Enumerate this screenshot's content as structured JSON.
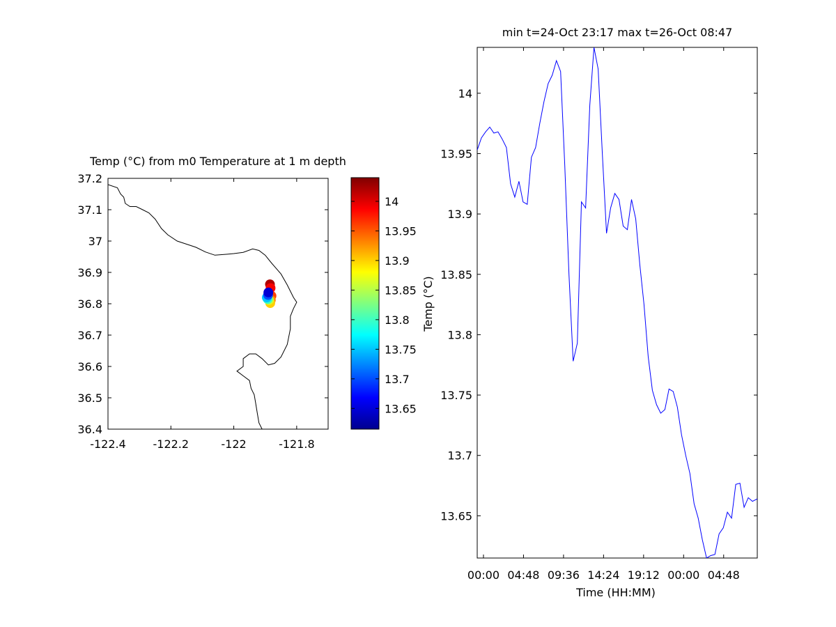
{
  "chart_data": [
    {
      "type": "scatter",
      "title": "Temp (°C) from m0 Temperature at 1 m depth",
      "xlim": [
        -122.4,
        -121.7
      ],
      "ylim": [
        36.4,
        37.2
      ],
      "xticks": [
        "-122.4",
        "-122.2",
        "-122",
        "-121.8"
      ],
      "xtick_values": [
        -122.4,
        -122.2,
        -122.0,
        -121.8
      ],
      "yticks": [
        "37.2",
        "37.1",
        "37",
        "36.9",
        "36.8",
        "36.7",
        "36.6",
        "36.5",
        "36.4"
      ],
      "ytick_values": [
        37.2,
        37.1,
        37.0,
        36.9,
        36.8,
        36.7,
        36.6,
        36.5,
        36.4
      ],
      "coastline": [
        [
          -122.4,
          37.18
        ],
        [
          -122.37,
          37.17
        ],
        [
          -122.36,
          37.15
        ],
        [
          -122.35,
          37.14
        ],
        [
          -122.345,
          37.12
        ],
        [
          -122.33,
          37.11
        ],
        [
          -122.31,
          37.11
        ],
        [
          -122.29,
          37.1
        ],
        [
          -122.27,
          37.09
        ],
        [
          -122.25,
          37.07
        ],
        [
          -122.23,
          37.04
        ],
        [
          -122.21,
          37.02
        ],
        [
          -122.18,
          37.0
        ],
        [
          -122.15,
          36.99
        ],
        [
          -122.12,
          36.98
        ],
        [
          -122.09,
          36.965
        ],
        [
          -122.06,
          36.955
        ],
        [
          -122.02,
          36.958
        ],
        [
          -122.0,
          36.96
        ],
        [
          -121.97,
          36.964
        ],
        [
          -121.94,
          36.975
        ],
        [
          -121.92,
          36.97
        ],
        [
          -121.9,
          36.955
        ],
        [
          -121.88,
          36.93
        ],
        [
          -121.85,
          36.895
        ],
        [
          -121.83,
          36.86
        ],
        [
          -121.81,
          36.82
        ],
        [
          -121.8,
          36.805
        ],
        [
          -121.81,
          36.785
        ],
        [
          -121.82,
          36.76
        ],
        [
          -121.82,
          36.72
        ],
        [
          -121.83,
          36.67
        ],
        [
          -121.85,
          36.63
        ],
        [
          -121.87,
          36.61
        ],
        [
          -121.89,
          36.605
        ],
        [
          -121.91,
          36.625
        ],
        [
          -121.93,
          36.64
        ],
        [
          -121.95,
          36.64
        ],
        [
          -121.97,
          36.625
        ],
        [
          -121.97,
          36.6
        ],
        [
          -121.99,
          36.585
        ],
        [
          -121.97,
          36.57
        ],
        [
          -121.95,
          36.555
        ],
        [
          -121.945,
          36.53
        ],
        [
          -121.935,
          36.51
        ],
        [
          -121.93,
          36.48
        ],
        [
          -121.925,
          36.45
        ],
        [
          -121.92,
          36.42
        ],
        [
          -121.91,
          36.4
        ]
      ],
      "points": [
        {
          "lon": -121.885,
          "lat": 36.862,
          "value": 14.02
        },
        {
          "lon": -121.883,
          "lat": 36.85,
          "value": 13.99
        },
        {
          "lon": -121.88,
          "lat": 36.825,
          "value": 13.96
        },
        {
          "lon": -121.882,
          "lat": 36.812,
          "value": 13.93
        },
        {
          "lon": -121.884,
          "lat": 36.802,
          "value": 13.9
        },
        {
          "lon": -121.888,
          "lat": 36.812,
          "value": 13.86
        },
        {
          "lon": -121.892,
          "lat": 36.815,
          "value": 13.8
        },
        {
          "lon": -121.895,
          "lat": 36.82,
          "value": 13.75
        },
        {
          "lon": -121.891,
          "lat": 36.828,
          "value": 13.7
        },
        {
          "lon": -121.89,
          "lat": 36.836,
          "value": 13.65
        }
      ],
      "colorbar": {
        "label": "Temp (°C)",
        "min": 13.615,
        "max": 14.04,
        "ticks": [
          "14",
          "13.95",
          "13.9",
          "13.85",
          "13.8",
          "13.75",
          "13.7",
          "13.65"
        ],
        "tick_values": [
          14.0,
          13.95,
          13.9,
          13.85,
          13.8,
          13.75,
          13.7,
          13.65
        ],
        "colormap": "jet"
      }
    },
    {
      "type": "line",
      "title": "min t=24-Oct 23:17 max t=26-Oct 08:47",
      "xlabel": "Time (HH:MM)",
      "ylabel": "Temp (°C)",
      "xlim": [
        23.25,
        56.83
      ],
      "ylim": [
        13.615,
        14.038
      ],
      "xticks": [
        "00:00",
        "04:48",
        "09:36",
        "14:24",
        "19:12",
        "00:00",
        "04:48"
      ],
      "xtick_values": [
        24.0,
        28.8,
        33.6,
        38.4,
        43.2,
        48.0,
        52.8
      ],
      "yticks": [
        "14",
        "13.95",
        "13.9",
        "13.85",
        "13.8",
        "13.75",
        "13.7",
        "13.65"
      ],
      "ytick_values": [
        14.0,
        13.95,
        13.9,
        13.85,
        13.8,
        13.75,
        13.7,
        13.65
      ],
      "series_color": "#0000ff",
      "x": [
        23.25,
        23.75,
        24.25,
        24.75,
        25.25,
        25.75,
        26.25,
        26.75,
        27.25,
        27.75,
        28.25,
        28.75,
        29.25,
        29.75,
        30.25,
        30.75,
        31.25,
        31.75,
        32.25,
        32.75,
        33.25,
        33.75,
        34.25,
        34.75,
        35.25,
        35.75,
        36.25,
        36.75,
        37.25,
        37.75,
        38.25,
        38.75,
        39.25,
        39.75,
        40.25,
        40.75,
        41.25,
        41.75,
        42.25,
        42.75,
        43.25,
        43.75,
        44.25,
        44.75,
        45.25,
        45.75,
        46.25,
        46.75,
        47.25,
        47.75,
        48.25,
        48.75,
        49.25,
        49.75,
        50.25,
        50.75,
        51.25,
        51.75,
        52.25,
        52.75,
        53.25,
        53.75,
        54.25,
        54.75,
        55.25,
        55.75,
        56.25,
        56.83
      ],
      "y": [
        13.953,
        13.963,
        13.968,
        13.972,
        13.967,
        13.968,
        13.962,
        13.955,
        13.925,
        13.914,
        13.927,
        13.91,
        13.908,
        13.947,
        13.955,
        13.975,
        13.993,
        14.008,
        14.015,
        14.027,
        14.018,
        13.94,
        13.85,
        13.778,
        13.793,
        13.91,
        13.905,
        13.99,
        14.038,
        14.02,
        13.95,
        13.884,
        13.905,
        13.917,
        13.912,
        13.89,
        13.887,
        13.912,
        13.896,
        13.858,
        13.825,
        13.782,
        13.754,
        13.742,
        13.735,
        13.738,
        13.755,
        13.753,
        13.74,
        13.717,
        13.7,
        13.685,
        13.66,
        13.648,
        13.63,
        13.615,
        13.617,
        13.618,
        13.635,
        13.64,
        13.653,
        13.648,
        13.676,
        13.677,
        13.657,
        13.665,
        13.662,
        13.664
      ]
    }
  ]
}
